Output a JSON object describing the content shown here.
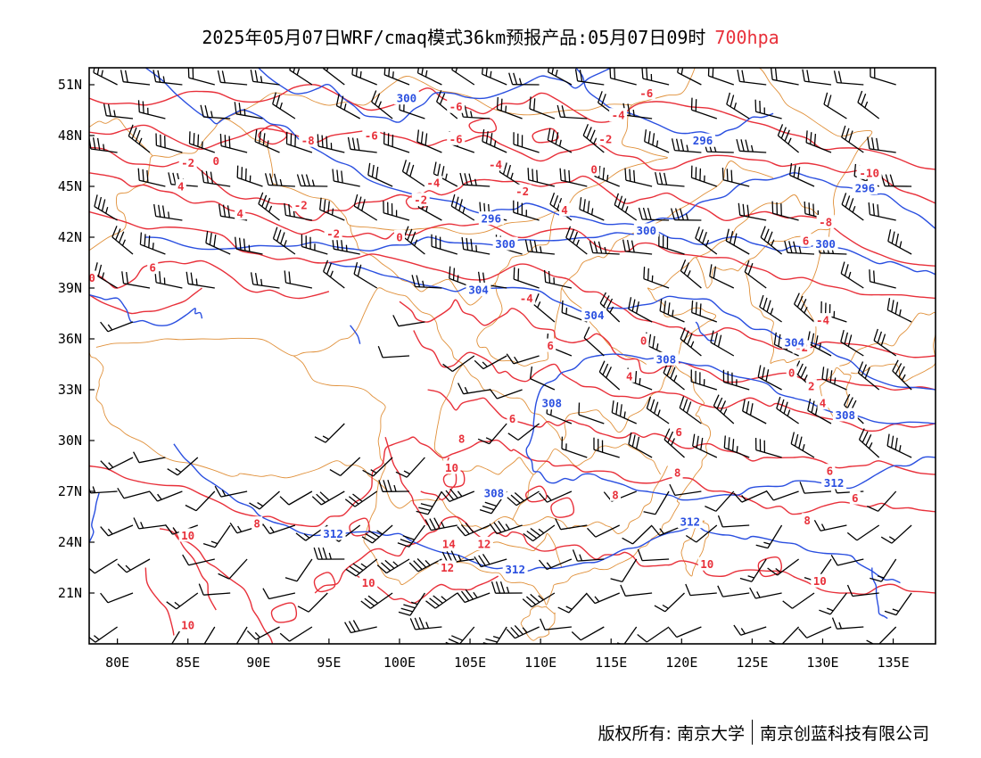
{
  "title": {
    "main": "2025年05月07日WRF/cmaq模式36km预报产品:05月07日09时",
    "level": "700hpa"
  },
  "colors": {
    "temperature": "#e8303a",
    "geopotential": "#2a4fe0",
    "boundary": "#e0903a",
    "barb": "#000000"
  },
  "axes": {
    "lon_range": [
      78,
      138
    ],
    "lat_range": [
      18,
      52
    ],
    "lon_ticks": [
      "80E",
      "85E",
      "90E",
      "95E",
      "100E",
      "105E",
      "110E",
      "115E",
      "120E",
      "125E",
      "130E",
      "135E"
    ],
    "lat_ticks": [
      "51N",
      "48N",
      "45N",
      "42N",
      "39N",
      "36N",
      "33N",
      "30N",
      "27N",
      "24N",
      "21N"
    ]
  },
  "contour_labels": {
    "temperature": [
      {
        "text": "-6",
        "lon": 104.0,
        "lat": 49.7
      },
      {
        "text": "-6",
        "lon": 104.0,
        "lat": 47.8
      },
      {
        "text": "-6",
        "lon": 98.0,
        "lat": 48.0
      },
      {
        "text": "-8",
        "lon": 93.5,
        "lat": 47.7
      },
      {
        "text": "-4",
        "lon": 115.5,
        "lat": 49.2
      },
      {
        "text": "-6",
        "lon": 117.5,
        "lat": 50.5
      },
      {
        "text": "-2",
        "lon": 114.6,
        "lat": 47.8
      },
      {
        "text": "-4",
        "lon": 106.8,
        "lat": 46.3
      },
      {
        "text": "0",
        "lon": 113.8,
        "lat": 46.0
      },
      {
        "text": "-4",
        "lon": 102.4,
        "lat": 45.2
      },
      {
        "text": "-2",
        "lon": 101.5,
        "lat": 44.2
      },
      {
        "text": "-2",
        "lon": 93.0,
        "lat": 43.9
      },
      {
        "text": "-2",
        "lon": 108.7,
        "lat": 44.7
      },
      {
        "text": "4",
        "lon": 111.7,
        "lat": 43.6
      },
      {
        "text": "-2",
        "lon": 95.3,
        "lat": 42.2
      },
      {
        "text": "0",
        "lon": 100.0,
        "lat": 42.0
      },
      {
        "text": "-2",
        "lon": 85.0,
        "lat": 46.4
      },
      {
        "text": "0",
        "lon": 87.0,
        "lat": 46.5
      },
      {
        "text": "4",
        "lon": 84.5,
        "lat": 45.0
      },
      {
        "text": "4",
        "lon": 88.7,
        "lat": 43.4
      },
      {
        "text": "6",
        "lon": 82.5,
        "lat": 40.2
      },
      {
        "text": "0",
        "lon": 78.2,
        "lat": 39.6
      },
      {
        "text": "-4",
        "lon": 109.0,
        "lat": 38.4
      },
      {
        "text": "6",
        "lon": 110.7,
        "lat": 35.6
      },
      {
        "text": "0",
        "lon": 117.3,
        "lat": 35.9
      },
      {
        "text": "4",
        "lon": 116.3,
        "lat": 33.8
      },
      {
        "text": "6",
        "lon": 108.0,
        "lat": 31.3
      },
      {
        "text": "8",
        "lon": 104.4,
        "lat": 30.1
      },
      {
        "text": "10",
        "lon": 103.7,
        "lat": 28.4
      },
      {
        "text": "6",
        "lon": 119.8,
        "lat": 30.5
      },
      {
        "text": "8",
        "lon": 119.7,
        "lat": 28.1
      },
      {
        "text": "8",
        "lon": 115.3,
        "lat": 26.8
      },
      {
        "text": "8",
        "lon": 89.9,
        "lat": 25.1
      },
      {
        "text": "10",
        "lon": 85.0,
        "lat": 24.4
      },
      {
        "text": "14",
        "lon": 103.5,
        "lat": 23.9
      },
      {
        "text": "12",
        "lon": 106.0,
        "lat": 23.9
      },
      {
        "text": "12",
        "lon": 103.4,
        "lat": 22.5
      },
      {
        "text": "10",
        "lon": 97.8,
        "lat": 21.6
      },
      {
        "text": "10",
        "lon": 121.8,
        "lat": 22.7
      },
      {
        "text": "10",
        "lon": 129.8,
        "lat": 21.7
      },
      {
        "text": "10",
        "lon": 85.0,
        "lat": 19.1
      },
      {
        "text": "6",
        "lon": 128.8,
        "lat": 41.8
      },
      {
        "text": "-8",
        "lon": 130.2,
        "lat": 42.9
      },
      {
        "text": "-10",
        "lon": 133.3,
        "lat": 45.8
      },
      {
        "text": "-4",
        "lon": 130.0,
        "lat": 37.1
      },
      {
        "text": "-2",
        "lon": 128.5,
        "lat": 35.5
      },
      {
        "text": "0",
        "lon": 127.8,
        "lat": 34.0
      },
      {
        "text": "2",
        "lon": 129.2,
        "lat": 33.2
      },
      {
        "text": "4",
        "lon": 130.0,
        "lat": 32.2
      },
      {
        "text": "6",
        "lon": 130.5,
        "lat": 28.2
      },
      {
        "text": "6",
        "lon": 132.3,
        "lat": 26.6
      },
      {
        "text": "8",
        "lon": 128.9,
        "lat": 25.3
      }
    ],
    "geopotential": [
      {
        "text": "300",
        "lon": 100.5,
        "lat": 50.2
      },
      {
        "text": "296",
        "lon": 121.5,
        "lat": 47.7
      },
      {
        "text": "296",
        "lon": 133.0,
        "lat": 44.9
      },
      {
        "text": "296",
        "lon": 106.5,
        "lat": 43.1
      },
      {
        "text": "300",
        "lon": 117.5,
        "lat": 42.4
      },
      {
        "text": "300",
        "lon": 130.2,
        "lat": 41.6
      },
      {
        "text": "300",
        "lon": 107.5,
        "lat": 41.6
      },
      {
        "text": "304",
        "lon": 105.6,
        "lat": 38.9
      },
      {
        "text": "304",
        "lon": 113.8,
        "lat": 37.4
      },
      {
        "text": "304",
        "lon": 128.0,
        "lat": 35.8
      },
      {
        "text": "308",
        "lon": 118.9,
        "lat": 34.8
      },
      {
        "text": "308",
        "lon": 110.8,
        "lat": 32.2
      },
      {
        "text": "308",
        "lon": 131.6,
        "lat": 31.5
      },
      {
        "text": "308",
        "lon": 106.7,
        "lat": 26.9
      },
      {
        "text": "312",
        "lon": 130.8,
        "lat": 27.5
      },
      {
        "text": "312",
        "lon": 95.3,
        "lat": 24.5
      },
      {
        "text": "312",
        "lon": 120.6,
        "lat": 25.2
      },
      {
        "text": "312",
        "lon": 108.2,
        "lat": 22.4
      }
    ]
  },
  "copyright": {
    "left": "版权所有: 南京大学",
    "right": "南京创蓝科技有限公司"
  }
}
